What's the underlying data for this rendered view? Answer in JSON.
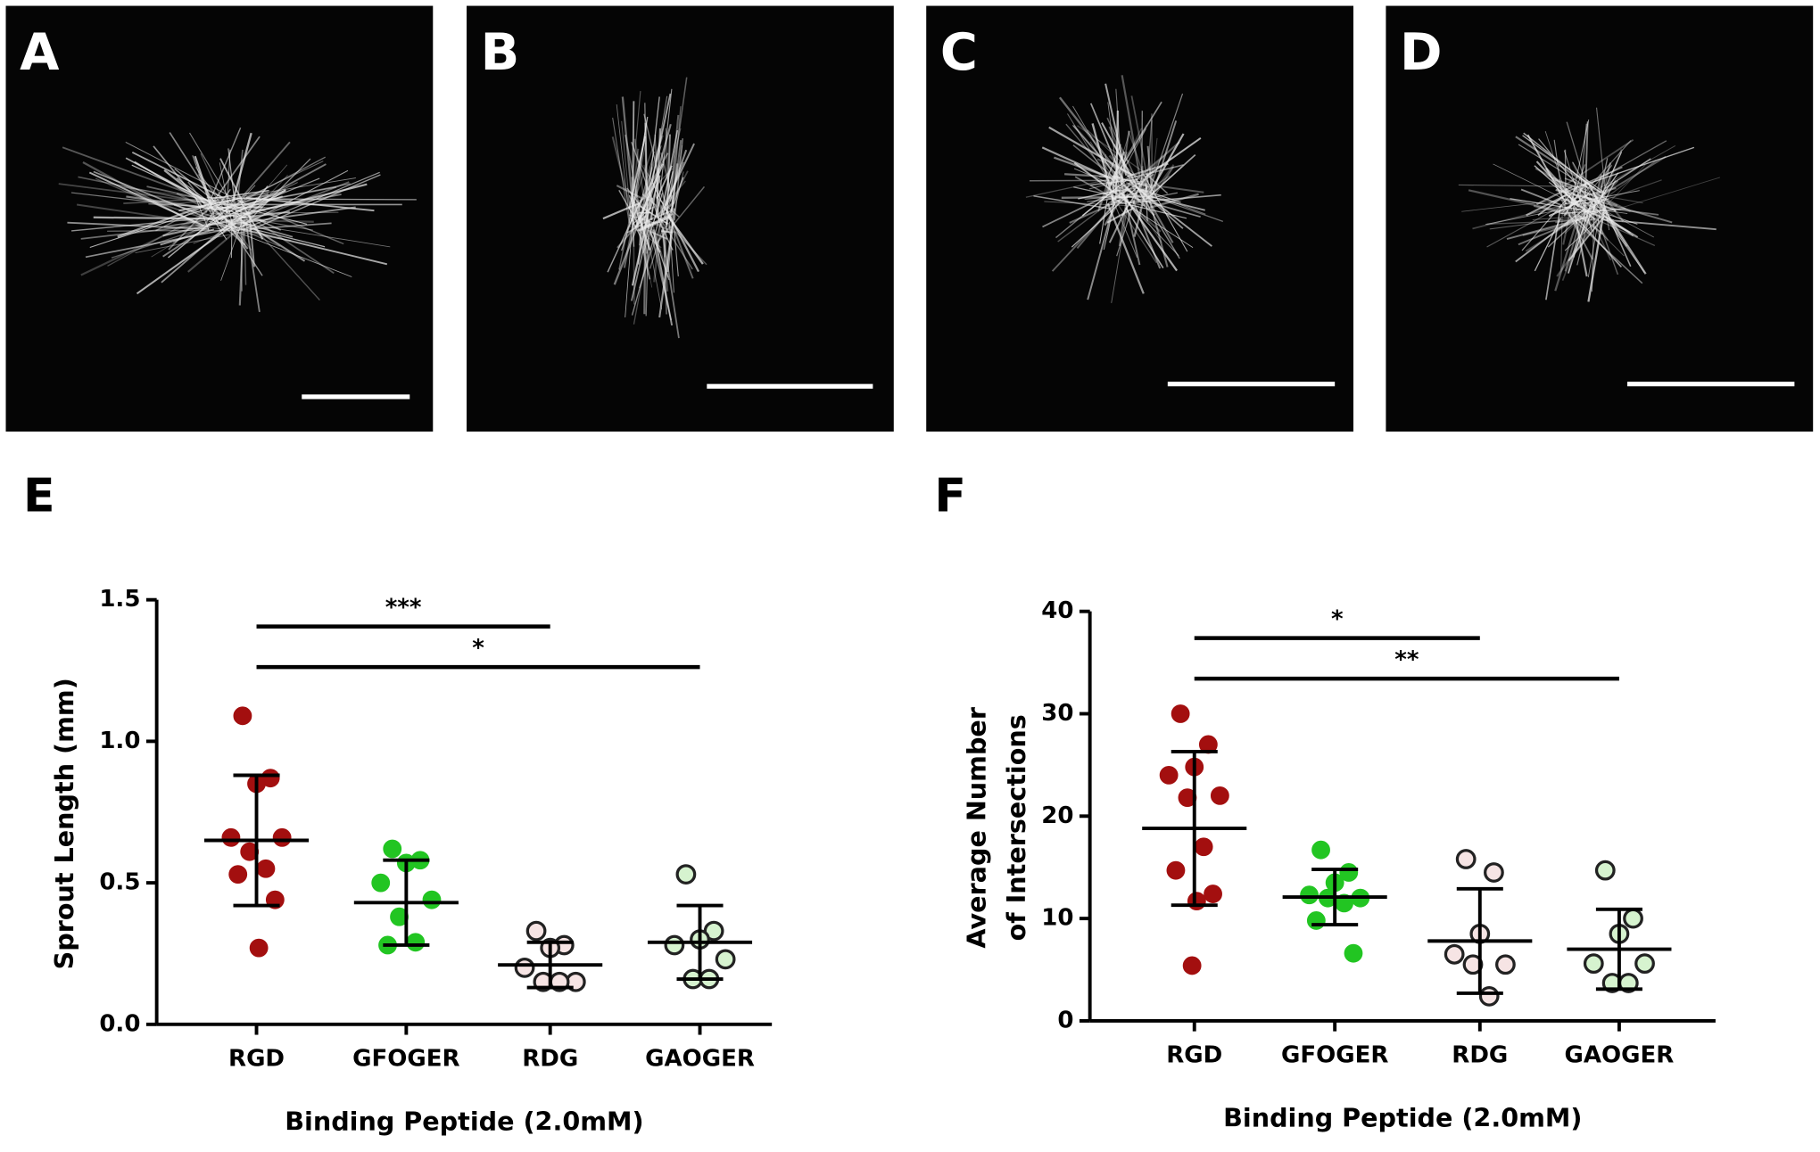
{
  "panels": [
    {
      "label": "A"
    },
    {
      "label": "B"
    },
    {
      "label": "C"
    },
    {
      "label": "D"
    }
  ],
  "chart_data": [
    {
      "type": "scatter",
      "panel": "E",
      "ylabel": [
        "Sprout Length (mm)"
      ],
      "xlabel": "Binding Peptide (2.0mM)",
      "ylim": [
        0,
        1.5
      ],
      "yticks": [
        {
          "value": 0,
          "label": "0.0"
        },
        0.5,
        {
          "value": 1,
          "label": "1.0"
        },
        1.5
      ],
      "series": [
        {
          "name": "RGD",
          "color": "#a30f0f",
          "marker": "filled",
          "values": [
            1.09,
            0.87,
            0.85,
            0.66,
            0.66,
            0.61,
            0.55,
            0.53,
            0.44,
            0.27
          ],
          "mean": 0.65,
          "sd": 0.23
        },
        {
          "name": "GFOGER",
          "color": "#22c522",
          "marker": "filled",
          "values": [
            0.62,
            0.58,
            0.57,
            0.5,
            0.44,
            0.38,
            0.29,
            0.28
          ],
          "mean": 0.43,
          "sd": 0.15
        },
        {
          "name": "RDG",
          "color": "#f6e4e4",
          "marker": "open",
          "values": [
            0.33,
            0.28,
            0.27,
            0.2,
            0.15,
            0.15,
            0.15
          ],
          "mean": 0.21,
          "sd": 0.08
        },
        {
          "name": "GAOGER",
          "color": "#d6f3cf",
          "marker": "open",
          "values": [
            0.53,
            0.33,
            0.3,
            0.28,
            0.23,
            0.16,
            0.16
          ],
          "mean": 0.29,
          "sd": 0.13
        }
      ],
      "significance": [
        {
          "from": "RGD",
          "to": "RDG",
          "label": "***"
        },
        {
          "from": "RGD",
          "to": "GAOGER",
          "label": "*"
        }
      ]
    },
    {
      "type": "scatter",
      "panel": "F",
      "ylabel": [
        "Average Number",
        "of Intersections"
      ],
      "xlabel": "Binding Peptide (2.0mM)",
      "ylim": [
        0,
        40
      ],
      "yticks": [
        0,
        10,
        20,
        30,
        40
      ],
      "series": [
        {
          "name": "RGD",
          "color": "#a30f0f",
          "marker": "filled",
          "values": [
            30,
            27,
            24.8,
            24,
            22,
            21.8,
            17,
            14.7,
            12.4,
            11.7,
            5.4
          ],
          "mean": 18.8,
          "sd": 7.5
        },
        {
          "name": "GFOGER",
          "color": "#22c522",
          "marker": "filled",
          "values": [
            16.7,
            14.5,
            13.5,
            12.3,
            12,
            12,
            11.5,
            9.8,
            6.6
          ],
          "mean": 12.1,
          "sd": 2.7
        },
        {
          "name": "RDG",
          "color": "#f6e4e4",
          "marker": "open",
          "values": [
            15.8,
            14.5,
            8.5,
            6.5,
            5.5,
            5.5,
            2.4
          ],
          "mean": 7.8,
          "sd": 5.1
        },
        {
          "name": "GAOGER",
          "color": "#d6f3cf",
          "marker": "open",
          "values": [
            14.7,
            10,
            8.5,
            5.6,
            5.6,
            3.7,
            3.7
          ],
          "mean": 7,
          "sd": 3.9
        }
      ],
      "significance": [
        {
          "from": "RGD",
          "to": "RDG",
          "label": "*"
        },
        {
          "from": "RGD",
          "to": "GAOGER",
          "label": "**"
        }
      ]
    }
  ]
}
